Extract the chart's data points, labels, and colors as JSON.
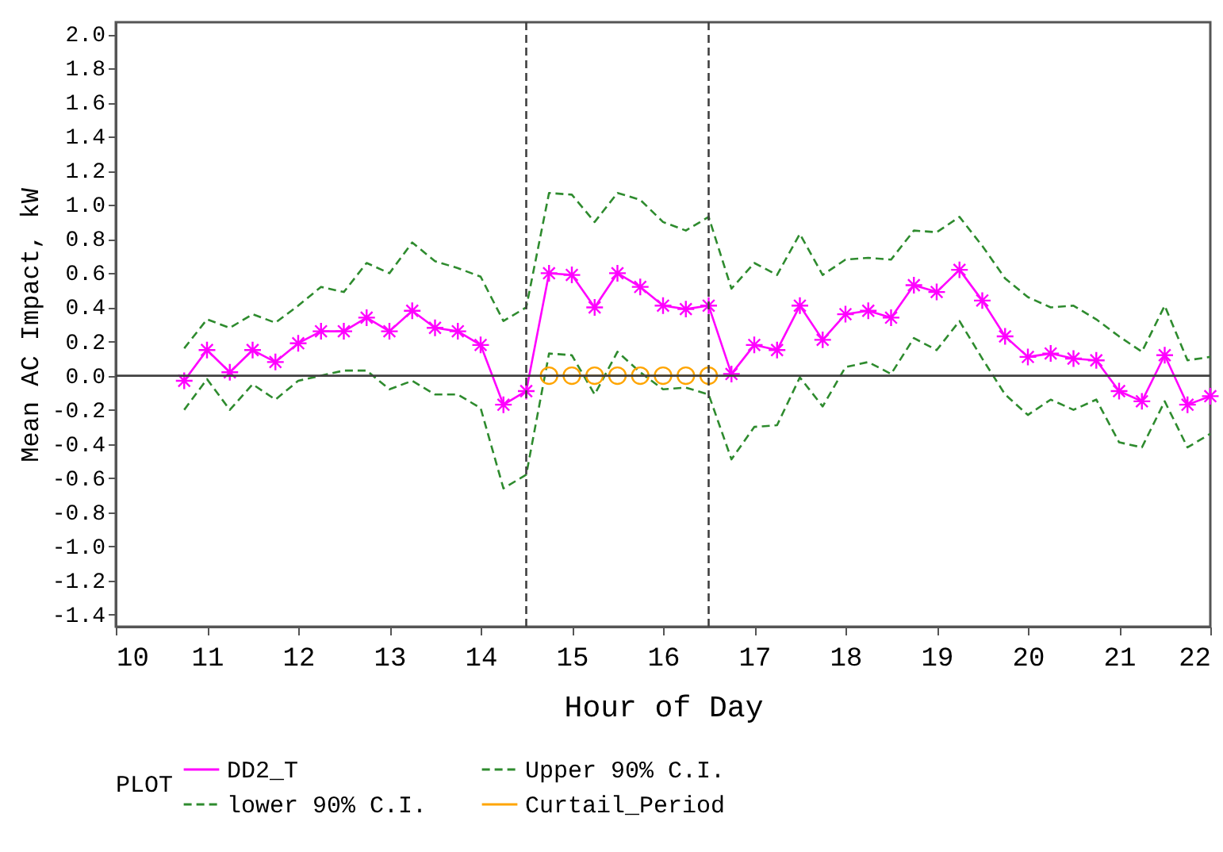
{
  "chart_data": {
    "type": "line",
    "xlabel": "Hour of Day",
    "ylabel": "Mean AC Impact, kW",
    "legend_title": "PLOT",
    "legend": "bottom",
    "grid": false,
    "x": [
      10.75,
      11,
      11.25,
      11.5,
      11.75,
      12,
      12.25,
      12.5,
      12.75,
      13,
      13.25,
      13.5,
      13.75,
      14,
      14.25,
      14.5,
      14.75,
      15,
      15.25,
      15.5,
      15.75,
      16,
      16.25,
      16.5,
      16.75,
      17,
      17.25,
      17.5,
      17.75,
      18,
      18.25,
      18.5,
      18.75,
      19,
      19.25,
      19.5,
      19.75,
      20,
      20.25,
      20.5,
      20.75,
      21,
      21.25,
      21.5,
      21.75,
      22
    ],
    "xlim": [
      10,
      22
    ],
    "xticks": [
      10,
      11,
      12,
      13,
      14,
      15,
      16,
      17,
      18,
      19,
      20,
      21,
      22
    ],
    "ylim": [
      -1.47,
      2.07
    ],
    "yticks": [
      {
        "value": -1.4,
        "label": "-1.4"
      },
      {
        "value": -1.2,
        "label": "-1.2"
      },
      {
        "value": -1,
        "label": "-1.0"
      },
      {
        "value": -0.8,
        "label": "-0.8"
      },
      {
        "value": -0.6,
        "label": "-0.6"
      },
      {
        "value": -0.4,
        "label": "-0.4"
      },
      {
        "value": -0.2,
        "label": "-0.2"
      },
      {
        "value": 0,
        "label": "0.0"
      },
      {
        "value": 0.2,
        "label": "0.2"
      },
      {
        "value": 0.4,
        "label": "0.4"
      },
      {
        "value": 0.6,
        "label": "0.6"
      },
      {
        "value": 0.8,
        "label": "0.8"
      },
      {
        "value": 1,
        "label": "1.0"
      },
      {
        "value": 1.2,
        "label": "1.2"
      },
      {
        "value": 1.4,
        "label": "1.4"
      },
      {
        "value": 1.6,
        "label": "1.6"
      },
      {
        "value": 1.8,
        "label": "1.8"
      },
      {
        "value": 2,
        "label": "2.0"
      }
    ],
    "ref_lines": [
      {
        "axis": "x",
        "value": 14.5,
        "line_style": "dashed",
        "color": "#404040"
      },
      {
        "axis": "x",
        "value": 16.5,
        "line_style": "dashed",
        "color": "#404040"
      },
      {
        "axis": "y",
        "value": 0,
        "line_style": "solid",
        "color": "#404040"
      }
    ],
    "series": [
      {
        "name": "DD2_T",
        "color": "#ff00ff",
        "marker": "cross",
        "line_style": "solid",
        "values": [
          -0.03,
          0.15,
          0.02,
          0.15,
          0.08,
          0.19,
          0.26,
          0.26,
          0.34,
          0.26,
          0.38,
          0.28,
          0.26,
          0.18,
          -0.17,
          -0.09,
          0.6,
          0.59,
          0.4,
          0.6,
          0.52,
          0.41,
          0.39,
          0.41,
          0.01,
          0.18,
          0.15,
          0.41,
          0.21,
          0.36,
          0.38,
          0.34,
          0.53,
          0.49,
          0.62,
          0.44,
          0.23,
          0.11,
          0.13,
          0.1,
          0.09,
          -0.09,
          -0.15,
          0.12,
          -0.17,
          -0.12
        ]
      },
      {
        "name": "Upper 90% C.I.",
        "color": "#2e8b2e",
        "marker": "none",
        "line_style": "dashed",
        "values": [
          0.16,
          0.33,
          0.28,
          0.36,
          0.31,
          0.41,
          0.52,
          0.49,
          0.66,
          0.6,
          0.78,
          0.67,
          0.63,
          0.58,
          0.32,
          0.4,
          1.07,
          1.06,
          0.9,
          1.07,
          1.03,
          0.9,
          0.85,
          0.93,
          0.51,
          0.66,
          0.59,
          0.83,
          0.59,
          0.68,
          0.69,
          0.68,
          0.85,
          0.84,
          0.93,
          0.76,
          0.57,
          0.46,
          0.4,
          0.41,
          0.33,
          0.23,
          0.14,
          0.41,
          0.09,
          0.11
        ]
      },
      {
        "name": "lower 90% C.I.",
        "color": "#2e8b2e",
        "marker": "none",
        "line_style": "dashed",
        "values": [
          -0.2,
          -0.02,
          -0.2,
          -0.05,
          -0.14,
          -0.03,
          0,
          0.03,
          0.03,
          -0.08,
          -0.03,
          -0.11,
          -0.11,
          -0.19,
          -0.66,
          -0.58,
          0.13,
          0.12,
          -0.11,
          0.14,
          0.02,
          -0.08,
          -0.07,
          -0.11,
          -0.49,
          -0.3,
          -0.29,
          -0.01,
          -0.18,
          0.05,
          0.08,
          0.01,
          0.22,
          0.15,
          0.32,
          0.1,
          -0.11,
          -0.23,
          -0.14,
          -0.2,
          -0.14,
          -0.39,
          -0.42,
          -0.15,
          -0.42,
          -0.34
        ]
      },
      {
        "name": "Curtail_Period",
        "color": "#ffa500",
        "marker": "circle",
        "line_style": "solid",
        "x": [
          14.75,
          15,
          15.25,
          15.5,
          15.75,
          16,
          16.25,
          16.5
        ],
        "values": [
          0,
          0,
          0,
          0,
          0,
          0,
          0,
          0
        ]
      }
    ]
  }
}
